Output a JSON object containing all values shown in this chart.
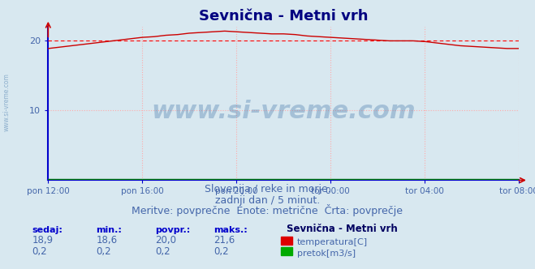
{
  "title": "Sevnična - Metni vrh",
  "title_color": "#000080",
  "title_fontsize": 13,
  "bg_color": "#d8e8f0",
  "plot_bg_color": "#d8e8f0",
  "fig_bg_color": "#d8e8f0",
  "ylim": [
    0,
    22
  ],
  "yticks": [
    10,
    20
  ],
  "xtick_labels": [
    "pon 12:00",
    "pon 16:00",
    "pon 20:00",
    "tor 00:00",
    "tor 04:00",
    "tor 08:00"
  ],
  "xtick_positions": [
    0,
    4,
    8,
    12,
    16,
    20
  ],
  "avg_line_y": 20.0,
  "avg_line_color": "#ff0000",
  "temp_line_color": "#cc0000",
  "flow_line_color": "#008000",
  "watermark_text": "www.si-vreme.com",
  "watermark_color": "#4477aa",
  "watermark_alpha": 0.35,
  "sub_text1": "Slovenija / reke in morje.",
  "sub_text2": "zadnji dan / 5 minut.",
  "sub_text3": "Meritve: povprečne  Enote: metrične  Črta: povprečje",
  "sub_color": "#4466aa",
  "sub_fontsize": 9,
  "legend_title": "Sevnična - Metni vrh",
  "legend_items": [
    "temperatura[C]",
    "pretok[m3/s]"
  ],
  "legend_colors": [
    "#dd0000",
    "#00aa00"
  ],
  "table_headers": [
    "sedaj:",
    "min.:",
    "povpr.:",
    "maks.:"
  ],
  "table_row1": [
    "18,9",
    "18,6",
    "20,0",
    "21,6"
  ],
  "table_row2": [
    "0,2",
    "0,2",
    "0,2",
    "0,2"
  ],
  "table_color": "#4466aa",
  "grid_color": "#ffaaaa",
  "grid_linestyle": ":",
  "axis_color": "#0000cc",
  "temp_data_x": [
    0,
    0.5,
    1.0,
    1.5,
    2.0,
    2.5,
    3.0,
    3.5,
    4.0,
    4.5,
    5.0,
    5.5,
    6.0,
    6.5,
    7.0,
    7.5,
    8.0,
    8.5,
    9.0,
    9.5,
    10.0,
    10.5,
    11.0,
    11.5,
    12.0,
    12.5,
    13.0,
    13.5,
    14.0,
    14.5,
    15.0,
    15.5,
    16.0,
    16.5,
    17.0,
    17.5,
    18.0,
    18.5,
    19.0,
    19.5,
    20.0
  ],
  "temp_data_y": [
    18.9,
    19.1,
    19.3,
    19.5,
    19.7,
    19.9,
    20.1,
    20.3,
    20.5,
    20.6,
    20.8,
    20.9,
    21.1,
    21.2,
    21.3,
    21.4,
    21.3,
    21.2,
    21.1,
    21.0,
    21.0,
    20.9,
    20.7,
    20.6,
    20.5,
    20.4,
    20.3,
    20.2,
    20.1,
    20.0,
    20.0,
    20.0,
    19.9,
    19.7,
    19.5,
    19.3,
    19.2,
    19.1,
    19.0,
    18.9,
    18.9
  ],
  "flow_data_y": [
    0.2,
    0.2,
    0.2,
    0.2,
    0.2,
    0.2,
    0.2,
    0.2,
    0.2,
    0.2,
    0.2,
    0.2,
    0.2,
    0.2,
    0.2,
    0.2,
    0.2,
    0.2,
    0.2,
    0.2,
    0.2,
    0.2,
    0.2,
    0.2,
    0.2,
    0.2,
    0.2,
    0.2,
    0.2,
    0.2,
    0.2,
    0.2,
    0.2,
    0.2,
    0.2,
    0.2,
    0.2,
    0.2,
    0.2,
    0.2,
    0.2
  ]
}
